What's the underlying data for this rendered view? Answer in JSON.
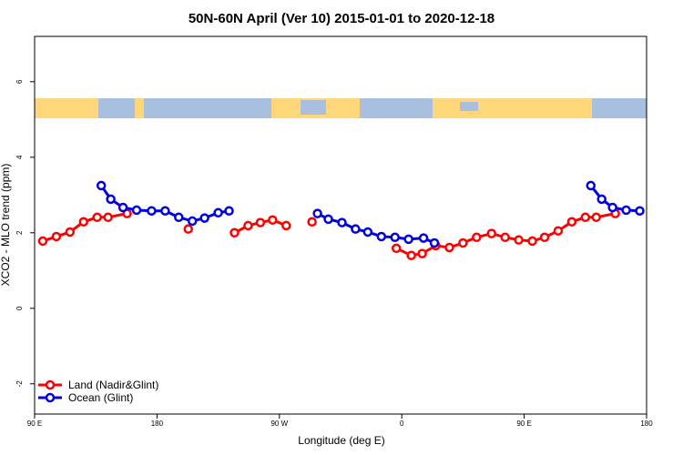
{
  "chart_data": {
    "type": "line",
    "title": "50N-60N April (Ver 10)   2015-01-01 to 2020-12-18",
    "x_label": "Longitude (deg E)",
    "y_label": "XCO2 - MLO trend (ppm)",
    "xlim": [
      90,
      540
    ],
    "xticks": [
      {
        "value": 90,
        "label": "90 E"
      },
      180,
      {
        "value": 270,
        "label": "90 W"
      },
      {
        "value": 360,
        "label": "0"
      },
      {
        "value": 450,
        "label": "90 E"
      },
      {
        "value": 540,
        "label": "180"
      }
    ],
    "ylim": [
      -2.8,
      7.2
    ],
    "yticks": [
      -2,
      0,
      2,
      4,
      6
    ],
    "legend": "bottom-left",
    "series": [
      {
        "name": "Land (Nadir&Glint)",
        "color": "#ff0000",
        "x": [
          96,
          106,
          116,
          126,
          136,
          144,
          158,
          180,
          203,
          220,
          237,
          247,
          256,
          265,
          275,
          285,
          294,
          325,
          356,
          367,
          375,
          385,
          395,
          405,
          415,
          426,
          436,
          446,
          456,
          465,
          475,
          485,
          495,
          503,
          517
        ],
        "values": [
          1.78,
          1.9,
          2.02,
          2.29,
          2.41,
          2.41,
          2.51,
          null,
          2.1,
          null,
          2.0,
          2.19,
          2.27,
          2.34,
          2.19,
          null,
          2.29,
          null,
          1.59,
          1.4,
          1.45,
          1.66,
          1.61,
          1.73,
          1.88,
          1.98,
          1.88,
          1.81,
          1.78,
          1.88,
          2.05,
          2.29,
          2.41,
          2.41,
          2.51
        ]
      },
      {
        "name": "Ocean (Glint)",
        "color": "#0000dd",
        "x": [
          139,
          146,
          155,
          165,
          176,
          186,
          196,
          206,
          215,
          225,
          233,
          265,
          298,
          306,
          316,
          326,
          335,
          345,
          355,
          365,
          376,
          384,
          440,
          499,
          507,
          515,
          525,
          535
        ],
        "values": [
          3.25,
          2.89,
          2.67,
          2.6,
          2.58,
          2.58,
          2.41,
          2.31,
          2.39,
          2.53,
          2.58,
          null,
          2.51,
          2.36,
          2.27,
          2.1,
          2.02,
          1.9,
          1.88,
          1.83,
          1.86,
          1.73,
          null,
          3.25,
          2.89,
          2.67,
          2.6,
          2.58
        ]
      }
    ]
  }
}
